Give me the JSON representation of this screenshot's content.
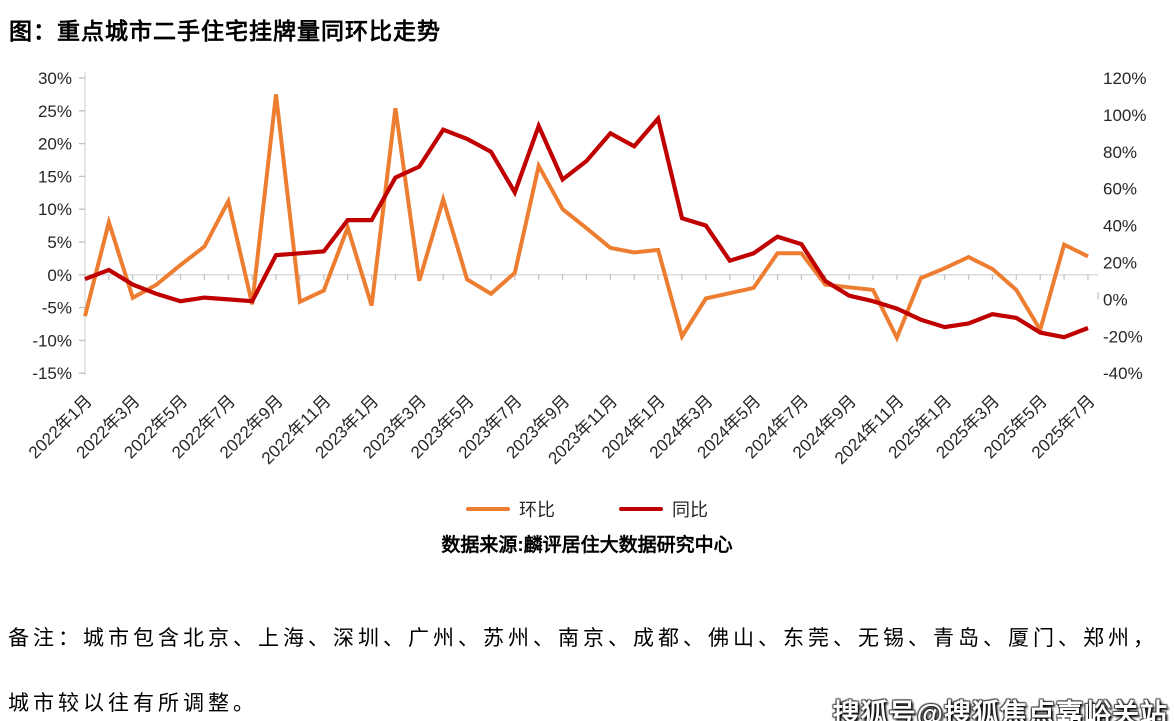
{
  "header": {
    "title": "图：重点城市二手住宅挂牌量同环比走势"
  },
  "chart_data": {
    "type": "line",
    "title": "重点城市二手住宅挂牌量同环比走势",
    "months": [
      "2022年1月",
      "2022年2月",
      "2022年3月",
      "2022年4月",
      "2022年5月",
      "2022年6月",
      "2022年7月",
      "2022年8月",
      "2022年9月",
      "2022年10月",
      "2022年11月",
      "2022年12月",
      "2023年1月",
      "2023年2月",
      "2023年3月",
      "2023年4月",
      "2023年5月",
      "2023年6月",
      "2023年7月",
      "2023年8月",
      "2023年9月",
      "2023年10月",
      "2023年11月",
      "2023年12月",
      "2024年1月",
      "2024年2月",
      "2024年3月",
      "2024年4月",
      "2024年5月",
      "2024年6月",
      "2024年7月",
      "2024年8月",
      "2024年9月",
      "2024年10月",
      "2024年11月",
      "2024年12月",
      "2025年1月",
      "2025年2月",
      "2025年3月",
      "2025年4月",
      "2025年5月",
      "2025年6月",
      "2025年7月"
    ],
    "x_label_step": 2,
    "series": [
      {
        "name": "环比",
        "axis": "left",
        "color": "#ED7D31",
        "width": 4,
        "values": [
          -6.3,
          8.0,
          -3.5,
          -1.5,
          1.5,
          4.3,
          11.2,
          -4.5,
          27.5,
          -4.1,
          -2.4,
          7.2,
          -4.7,
          25.4,
          -0.9,
          11.5,
          -0.7,
          -2.9,
          0.3,
          16.6,
          10.0,
          7.1,
          4.1,
          3.4,
          3.8,
          -9.4,
          -3.6,
          -2.8,
          -2.0,
          3.3,
          3.3,
          -1.5,
          -1.9,
          -2.3,
          -9.6,
          -0.5,
          1.0,
          2.7,
          0.9,
          -2.3,
          -8.4,
          4.6,
          2.8
        ]
      },
      {
        "name": "同比",
        "axis": "right",
        "color": "#C00000",
        "width": 4.2,
        "values": [
          11,
          16,
          8,
          3,
          -1,
          1,
          0,
          -1,
          24,
          25,
          26,
          43,
          43,
          66,
          72,
          92,
          87,
          80,
          58,
          94,
          65,
          75,
          90,
          83,
          98,
          44,
          40,
          21,
          25,
          34,
          30,
          10,
          2,
          -1,
          -5,
          -11,
          -15,
          -13,
          -8,
          -10,
          -18,
          -20.5,
          -15.5
        ]
      }
    ],
    "left_axis": {
      "min": -15,
      "max": 30,
      "ticks": [
        30,
        25,
        20,
        15,
        10,
        5,
        0,
        -5,
        -10,
        -15
      ],
      "unit": "%"
    },
    "right_axis": {
      "min": -40,
      "max": 120,
      "ticks": [
        120,
        100,
        80,
        60,
        40,
        20,
        0,
        -20,
        -40
      ],
      "unit": "%"
    },
    "gridlines": "zero-only",
    "legend_position": "bottom",
    "axis_line_color": "#D9D9D9",
    "tick_color": "#BFBFBF",
    "axis_text_color": "#262626"
  },
  "legend": {
    "items": [
      {
        "label": "环比",
        "color": "#ED7D31"
      },
      {
        "label": "同比",
        "color": "#C00000"
      }
    ]
  },
  "source": {
    "text": "数据来源:麟评居住大数据研究中心"
  },
  "notes": {
    "line1": "备注：城市包含北京、上海、深圳、广州、苏州、南京、成都、佛山、东莞、无锡、青岛、厦门、郑州，",
    "line2": "城市较以往有所调整。"
  },
  "watermark": {
    "text": "搜狐号@搜狐焦点嘉峪关站"
  }
}
